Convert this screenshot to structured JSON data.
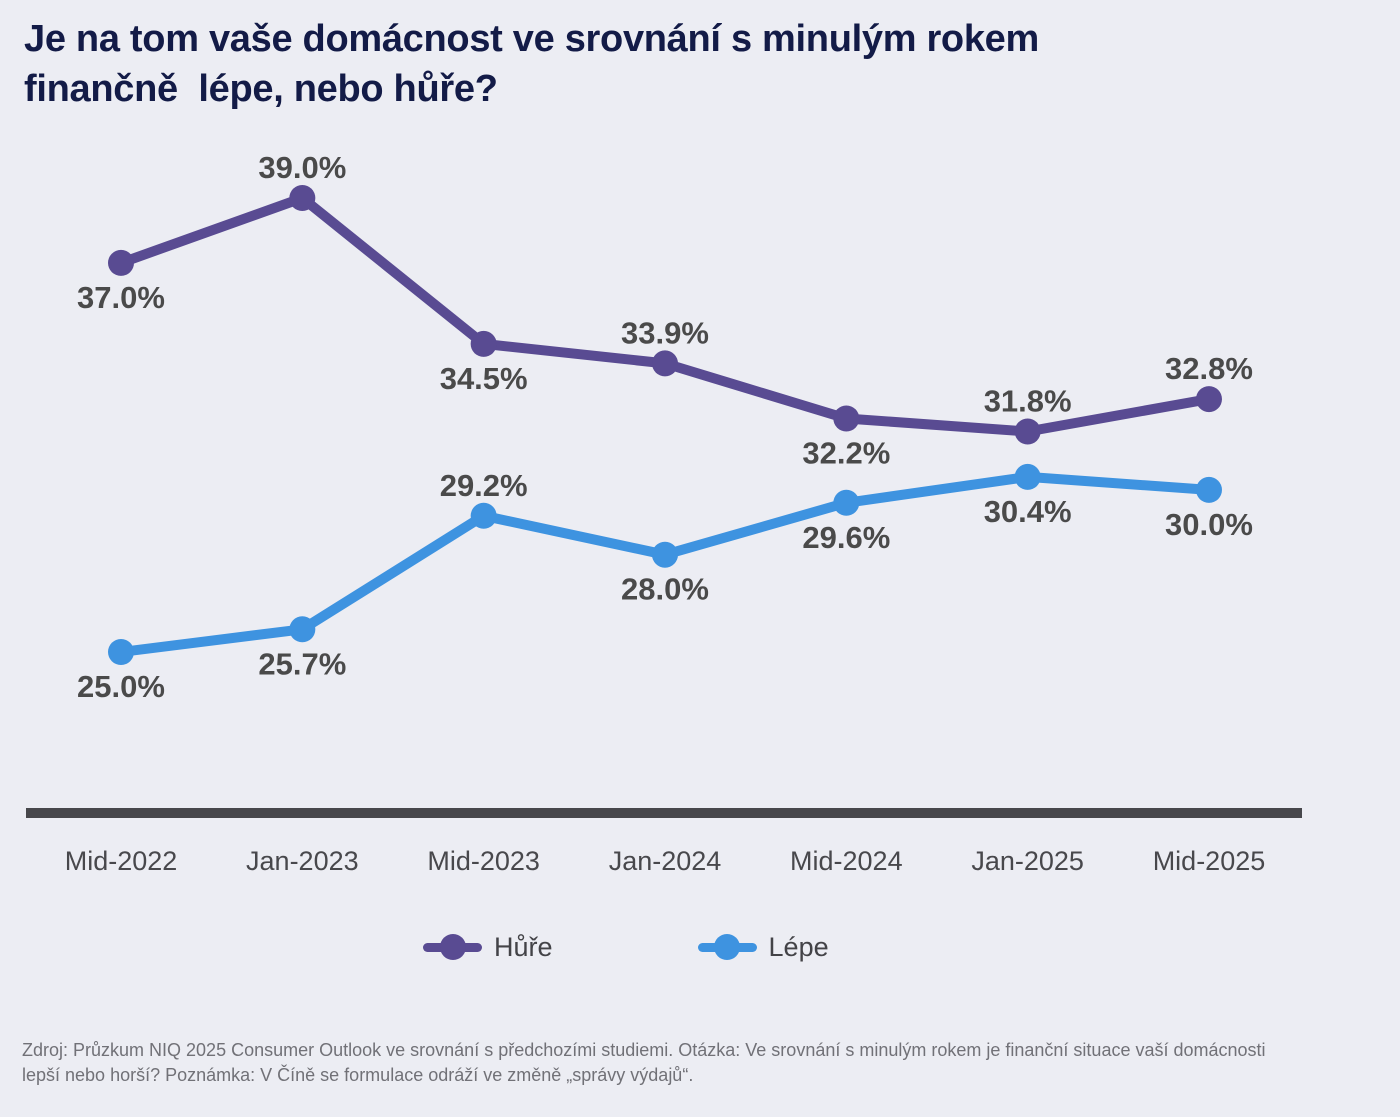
{
  "page": {
    "background_color": "#ecedf3",
    "title": {
      "line1": "Je na tom vaše domácnost ve srovnání s minulým rokem",
      "line2": "finančně  lépe, nebo hůře?",
      "color": "#131b47"
    },
    "source_note": "Zdroj: Průzkum NIQ 2025 Consumer Outlook ve srovnání s předchozími studiemi. Otázka: Ve srovnání s minulým rokem je finanční situace vaší domácnosti lepší nebo horší? Poznámka: V Číně se formulace odráží ve změně „správy výdajů“."
  },
  "chart_data": {
    "type": "line",
    "categories": [
      "Mid-2022",
      "Jan-2023",
      "Mid-2023",
      "Jan-2024",
      "Mid-2024",
      "Jan-2025",
      "Mid-2025"
    ],
    "series": [
      {
        "name": "Hůře",
        "color": "#594b92",
        "values": [
          37.0,
          39.0,
          34.5,
          33.9,
          32.2,
          31.8,
          32.8
        ],
        "labels": [
          "37.0%",
          "39.0%",
          "34.5%",
          "33.9%",
          "32.2%",
          "31.8%",
          "32.8%"
        ],
        "label_positions": [
          "below",
          "above",
          "below",
          "above",
          "below",
          "above",
          "above"
        ]
      },
      {
        "name": "Lépe",
        "color": "#3e93e0",
        "values": [
          25.0,
          25.7,
          29.2,
          28.0,
          29.6,
          30.4,
          30.0
        ],
        "labels": [
          "25.0%",
          "25.7%",
          "29.2%",
          "28.0%",
          "29.6%",
          "30.4%",
          "30.0%"
        ],
        "label_positions": [
          "below",
          "below",
          "above",
          "below",
          "below",
          "below",
          "below"
        ]
      }
    ],
    "value_format": "percent",
    "ylim": [
      23,
      41
    ],
    "grid": false,
    "legend_position": "bottom",
    "data_label_color": "#4a4a4a",
    "axis_line_color": "#47474b",
    "tick_label_color": "#48484c"
  }
}
